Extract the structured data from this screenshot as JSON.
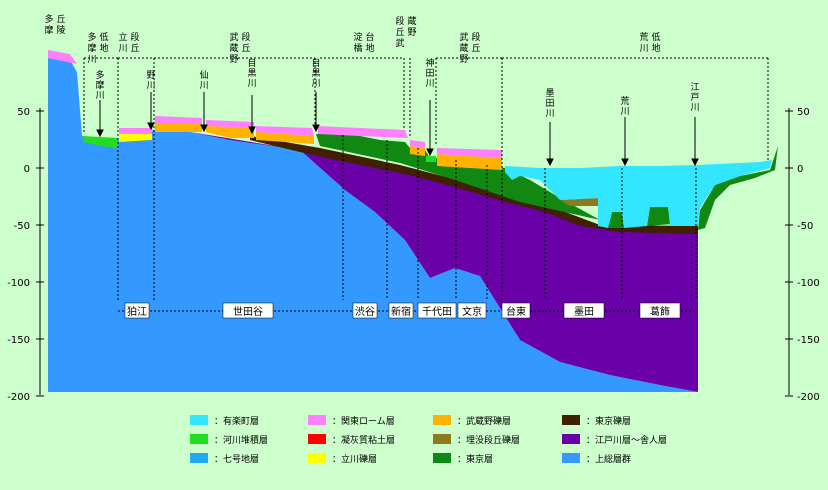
{
  "y_axis": {
    "ticks": [
      "50",
      "0",
      "-50",
      "-100",
      "-150",
      "-200"
    ],
    "values": [
      50,
      0,
      -50,
      -100,
      -150,
      -200
    ]
  },
  "terrain_labels": [
    {
      "id": "tama-kyuryo",
      "text": "多摩丘陵"
    },
    {
      "id": "tama-teichi",
      "text": "多摩川低地"
    },
    {
      "id": "tachikawa-dankyu",
      "text": "立川段丘"
    },
    {
      "id": "musashino-dankyu-w",
      "text": "武蔵野段丘"
    },
    {
      "id": "yodobashi-daichi",
      "text": "淀橋台地"
    },
    {
      "id": "dankyu-musashino",
      "text": "段丘武蔵野"
    },
    {
      "id": "musashino-dankyu-e",
      "text": "武蔵野段丘"
    },
    {
      "id": "arakawa-teichi",
      "text": "荒川低地"
    }
  ],
  "river_labels": [
    {
      "id": "tamagawa",
      "text": "多摩川"
    },
    {
      "id": "nogawa",
      "text": "野川"
    },
    {
      "id": "sengawa",
      "text": "仙川"
    },
    {
      "id": "meguro",
      "text": "目黒川"
    },
    {
      "id": "meguro2",
      "text": "目黒川"
    },
    {
      "id": "kanda",
      "text": "神田川"
    },
    {
      "id": "sumida",
      "text": "墨田川"
    },
    {
      "id": "arakawa",
      "text": "荒川"
    },
    {
      "id": "edogawa",
      "text": "江戸川"
    }
  ],
  "districts": [
    "狛江",
    "世田谷",
    "渋谷",
    "新宿",
    "千代田",
    "文京",
    "台東",
    "墨田",
    "葛飾"
  ],
  "legend": [
    {
      "label": "：有楽町層",
      "color": "#33e6ff"
    },
    {
      "label": "：関東ローム層",
      "color": "#ff80ff"
    },
    {
      "label": "：武蔵野礫層",
      "color": "#ffb300"
    },
    {
      "label": "：東京礫層",
      "color": "#402000"
    },
    {
      "label": "：河川堆積層",
      "color": "#22dd22"
    },
    {
      "label": "：凝灰質粘土層",
      "color": "#ff0000"
    },
    {
      "label": "：埋没段丘礫層",
      "color": "#8c7a1c"
    },
    {
      "label": "：江戸川層～舎人層",
      "color": "#6a00a8"
    },
    {
      "label": "：七号地層",
      "color": "#22aaee"
    },
    {
      "label": "：立川礫層",
      "color": "#ffff00"
    },
    {
      "label": "：東京層",
      "color": "#118811"
    },
    {
      "label": "：上総層群",
      "color": "#3399ff"
    }
  ]
}
